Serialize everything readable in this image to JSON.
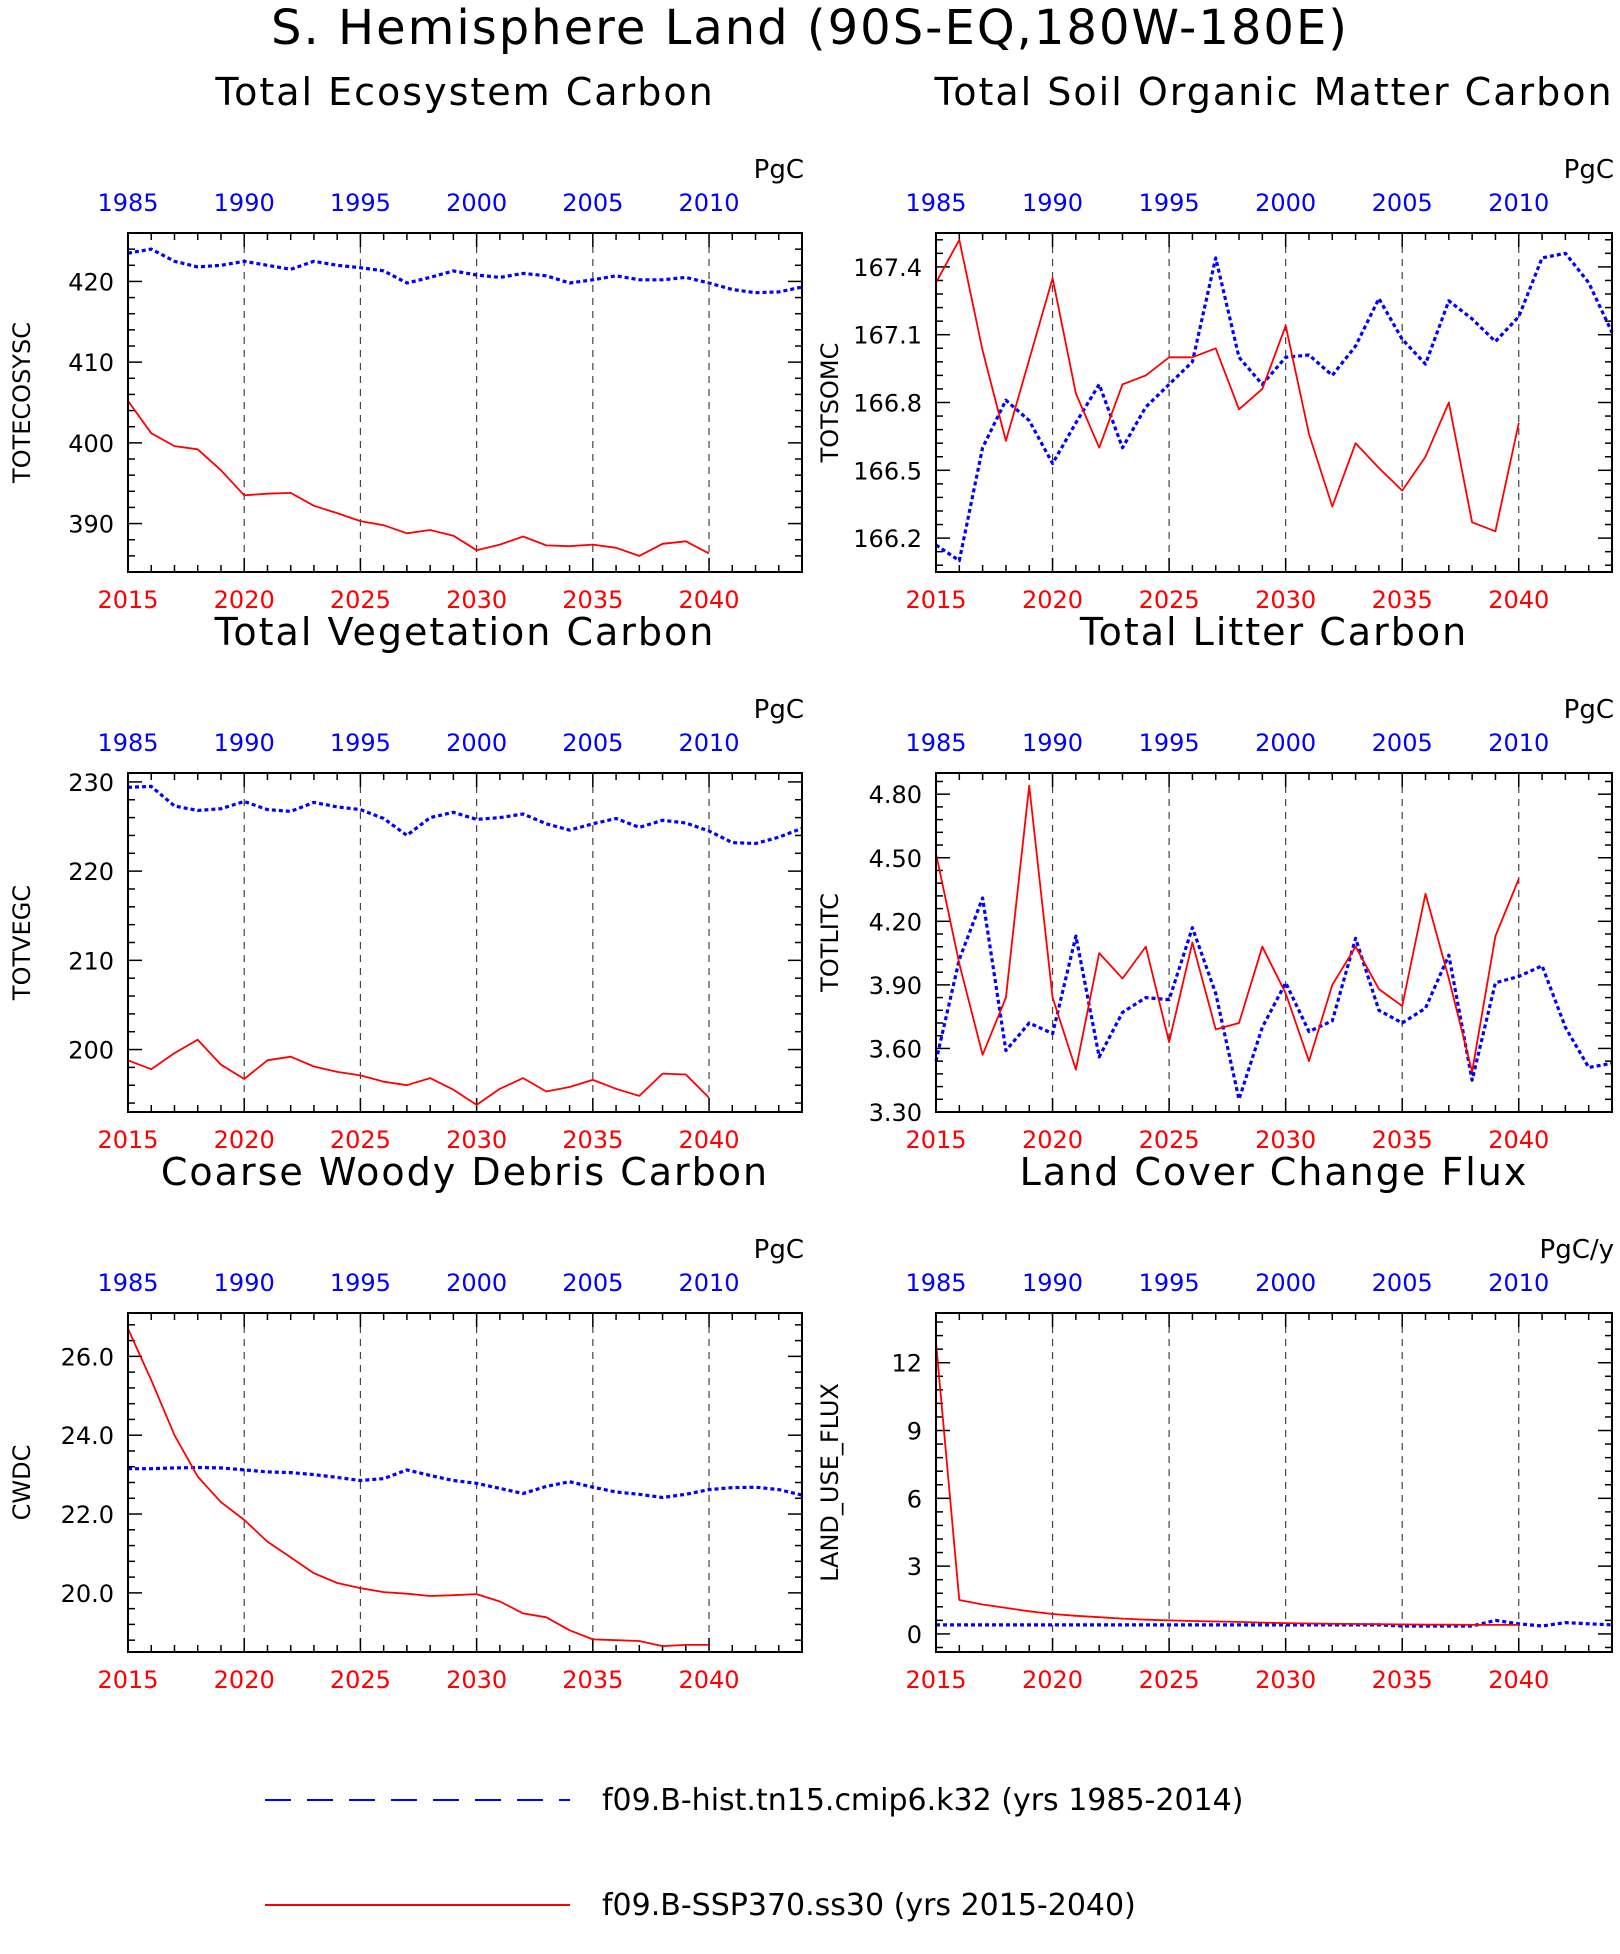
{
  "page_title": "S. Hemisphere Land (90S-EQ,180W-180E)",
  "colors": {
    "hist": "#0000ff",
    "ssp": "#ff0000",
    "axis": "#000000",
    "grid": "#444444"
  },
  "legend": [
    {
      "label": "f09.B-hist.tn15.cmip6.k32 (yrs 1985-2014)",
      "color": "#0000ff",
      "style": "dashed"
    },
    {
      "label": "f09.B-SSP370.ss30 (yrs 2015-2040)",
      "color": "#ff0000",
      "style": "solid"
    }
  ],
  "chart_data": [
    {
      "type": "line",
      "title": "Total Ecosystem Carbon",
      "ylabel": "TOTECOSYSC",
      "units": "PgC",
      "ylim": [
        384,
        426
      ],
      "yticks": [
        390,
        400,
        410,
        420
      ],
      "ytick_labels": [
        "390",
        "400",
        "410",
        "420"
      ],
      "bottom_axis": {
        "xlim": [
          2015,
          2044
        ],
        "ticks": [
          2015,
          2020,
          2025,
          2030,
          2035,
          2040
        ]
      },
      "top_axis": {
        "xlim": [
          1985,
          2014
        ],
        "ticks": [
          1985,
          1990,
          1995,
          2000,
          2005,
          2010
        ]
      },
      "series": [
        {
          "axis": "top",
          "style": "dashed",
          "x": [
            1985,
            1986,
            1987,
            1988,
            1989,
            1990,
            1991,
            1992,
            1993,
            1994,
            1995,
            1996,
            1997,
            1998,
            1999,
            2000,
            2001,
            2002,
            2003,
            2004,
            2005,
            2006,
            2007,
            2008,
            2009,
            2010,
            2011,
            2012,
            2013,
            2014
          ],
          "y": [
            423.5,
            424,
            422.5,
            421.8,
            422,
            422.5,
            422,
            421.5,
            422.5,
            422,
            421.7,
            421.3,
            419.8,
            420.5,
            421.3,
            420.8,
            420.5,
            421,
            420.7,
            419.8,
            420.2,
            420.7,
            420.2,
            420.2,
            420.5,
            419.8,
            419,
            418.6,
            418.7,
            419.3
          ]
        },
        {
          "axis": "bottom",
          "style": "solid",
          "x": [
            2015,
            2016,
            2017,
            2018,
            2019,
            2020,
            2021,
            2022,
            2023,
            2024,
            2025,
            2026,
            2027,
            2028,
            2029,
            2030,
            2031,
            2032,
            2033,
            2034,
            2035,
            2036,
            2037,
            2038,
            2039,
            2040
          ],
          "y": [
            405.2,
            401.2,
            399.6,
            399.2,
            396.6,
            393.5,
            393.7,
            393.8,
            392.2,
            391.3,
            390.3,
            389.8,
            388.8,
            389.2,
            388.5,
            386.7,
            387.4,
            388.4,
            387.3,
            387.2,
            387.4,
            387,
            386,
            387.5,
            387.8,
            386.3
          ]
        }
      ]
    },
    {
      "type": "line",
      "title": "Total Soil Organic Matter Carbon",
      "ylabel": "TOTSOMC",
      "units": "PgC",
      "ylim": [
        166.05,
        167.55
      ],
      "yticks": [
        166.2,
        166.5,
        166.8,
        167.1,
        167.4
      ],
      "ytick_labels": [
        "166.2",
        "166.5",
        "166.8",
        "167.1",
        "167.4"
      ],
      "bottom_axis": {
        "xlim": [
          2015,
          2044
        ],
        "ticks": [
          2015,
          2020,
          2025,
          2030,
          2035,
          2040
        ]
      },
      "top_axis": {
        "xlim": [
          1985,
          2014
        ],
        "ticks": [
          1985,
          1990,
          1995,
          2000,
          2005,
          2010
        ]
      },
      "series": [
        {
          "axis": "top",
          "style": "dashed",
          "x": [
            1985,
            1986,
            1987,
            1988,
            1989,
            1990,
            1991,
            1992,
            1993,
            1994,
            1995,
            1996,
            1997,
            1998,
            1999,
            2000,
            2001,
            2002,
            2003,
            2004,
            2005,
            2006,
            2007,
            2008,
            2009,
            2010,
            2011,
            2012,
            2013,
            2014
          ],
          "y": [
            166.17,
            166.1,
            166.6,
            166.81,
            166.72,
            166.53,
            166.71,
            166.88,
            166.6,
            166.78,
            166.88,
            166.98,
            167.44,
            167.0,
            166.88,
            167.0,
            167.01,
            166.92,
            167.05,
            167.26,
            167.08,
            166.97,
            167.25,
            167.17,
            167.07,
            167.18,
            167.44,
            167.46,
            167.33,
            167.11
          ]
        },
        {
          "axis": "bottom",
          "style": "solid",
          "x": [
            2015,
            2016,
            2017,
            2018,
            2019,
            2020,
            2021,
            2022,
            2023,
            2024,
            2025,
            2026,
            2027,
            2028,
            2029,
            2030,
            2031,
            2032,
            2033,
            2034,
            2035,
            2036,
            2037,
            2038,
            2039,
            2040
          ],
          "y": [
            167.33,
            167.52,
            167.03,
            166.63,
            166.99,
            167.35,
            166.84,
            166.6,
            166.88,
            166.92,
            167.0,
            167.0,
            167.04,
            166.77,
            166.86,
            167.14,
            166.66,
            166.34,
            166.62,
            166.51,
            166.41,
            166.56,
            166.8,
            166.27,
            166.23,
            166.71
          ]
        }
      ]
    },
    {
      "type": "line",
      "title": "Total Vegetation Carbon",
      "ylabel": "TOTVEGC",
      "units": "PgC",
      "ylim": [
        193,
        231
      ],
      "yticks": [
        200,
        210,
        220,
        230
      ],
      "ytick_labels": [
        "200",
        "210",
        "220",
        "230"
      ],
      "bottom_axis": {
        "xlim": [
          2015,
          2044
        ],
        "ticks": [
          2015,
          2020,
          2025,
          2030,
          2035,
          2040
        ]
      },
      "top_axis": {
        "xlim": [
          1985,
          2014
        ],
        "ticks": [
          1985,
          1990,
          1995,
          2000,
          2005,
          2010
        ]
      },
      "series": [
        {
          "axis": "top",
          "style": "dashed",
          "x": [
            1985,
            1986,
            1987,
            1988,
            1989,
            1990,
            1991,
            1992,
            1993,
            1994,
            1995,
            1996,
            1997,
            1998,
            1999,
            2000,
            2001,
            2002,
            2003,
            2004,
            2005,
            2006,
            2007,
            2008,
            2009,
            2010,
            2011,
            2012,
            2013,
            2014
          ],
          "y": [
            229.4,
            229.5,
            227.3,
            226.8,
            227,
            227.8,
            226.9,
            226.7,
            227.7,
            227.2,
            226.9,
            225.9,
            224,
            226,
            226.6,
            225.8,
            226,
            226.4,
            225.3,
            224.6,
            225.3,
            225.9,
            224.9,
            225.7,
            225.4,
            224.5,
            223.2,
            223.1,
            223.8,
            224.8
          ]
        },
        {
          "axis": "bottom",
          "style": "solid",
          "x": [
            2015,
            2016,
            2017,
            2018,
            2019,
            2020,
            2021,
            2022,
            2023,
            2024,
            2025,
            2026,
            2027,
            2028,
            2029,
            2030,
            2031,
            2032,
            2033,
            2034,
            2035,
            2036,
            2037,
            2038,
            2039,
            2040
          ],
          "y": [
            198.8,
            197.8,
            199.6,
            201.1,
            198.3,
            196.7,
            198.8,
            199.2,
            198.1,
            197.5,
            197.1,
            196.4,
            196,
            196.8,
            195.5,
            193.8,
            195.6,
            196.8,
            195.3,
            195.8,
            196.6,
            195.6,
            194.8,
            197.3,
            197.2,
            194.6
          ]
        }
      ]
    },
    {
      "type": "line",
      "title": "Total Litter Carbon",
      "ylabel": "TOTLITC",
      "units": "PgC",
      "ylim": [
        3.3,
        4.9
      ],
      "yticks": [
        3.3,
        3.6,
        3.9,
        4.2,
        4.5,
        4.8
      ],
      "ytick_labels": [
        "3.30",
        "3.60",
        "3.90",
        "4.20",
        "4.50",
        "4.80"
      ],
      "bottom_axis": {
        "xlim": [
          2015,
          2044
        ],
        "ticks": [
          2015,
          2020,
          2025,
          2030,
          2035,
          2040
        ]
      },
      "top_axis": {
        "xlim": [
          1985,
          2014
        ],
        "ticks": [
          1985,
          1990,
          1995,
          2000,
          2005,
          2010
        ]
      },
      "series": [
        {
          "axis": "top",
          "style": "dashed",
          "x": [
            1985,
            1986,
            1987,
            1988,
            1989,
            1990,
            1991,
            1992,
            1993,
            1994,
            1995,
            1996,
            1997,
            1998,
            1999,
            2000,
            2001,
            2002,
            2003,
            2004,
            2005,
            2006,
            2007,
            2008,
            2009,
            2010,
            2011,
            2012,
            2013,
            2014
          ],
          "y": [
            3.54,
            4.02,
            4.31,
            3.59,
            3.72,
            3.67,
            4.13,
            3.56,
            3.77,
            3.84,
            3.83,
            4.17,
            3.86,
            3.36,
            3.7,
            3.91,
            3.68,
            3.73,
            4.12,
            3.78,
            3.72,
            3.79,
            4.04,
            3.45,
            3.91,
            3.94,
            3.99,
            3.7,
            3.51,
            3.53
          ]
        },
        {
          "axis": "bottom",
          "style": "solid",
          "x": [
            2015,
            2016,
            2017,
            2018,
            2019,
            2020,
            2021,
            2022,
            2023,
            2024,
            2025,
            2026,
            2027,
            2028,
            2029,
            2030,
            2031,
            2032,
            2033,
            2034,
            2035,
            2036,
            2037,
            2038,
            2039,
            2040
          ],
          "y": [
            4.52,
            4.0,
            3.57,
            3.84,
            4.84,
            3.84,
            3.5,
            4.05,
            3.93,
            4.08,
            3.63,
            4.1,
            3.69,
            3.72,
            4.08,
            3.86,
            3.54,
            3.9,
            4.08,
            3.88,
            3.8,
            4.33,
            3.93,
            3.49,
            4.13,
            4.4
          ]
        }
      ]
    },
    {
      "type": "line",
      "title": "Coarse Woody Debris Carbon",
      "ylabel": "CWDC",
      "units": "PgC",
      "ylim": [
        18.5,
        27.1
      ],
      "yticks": [
        20,
        22,
        24,
        26
      ],
      "ytick_labels": [
        "20.0",
        "22.0",
        "24.0",
        "26.0"
      ],
      "bottom_axis": {
        "xlim": [
          2015,
          2044
        ],
        "ticks": [
          2015,
          2020,
          2025,
          2030,
          2035,
          2040
        ]
      },
      "top_axis": {
        "xlim": [
          1985,
          2014
        ],
        "ticks": [
          1985,
          1990,
          1995,
          2000,
          2005,
          2010
        ]
      },
      "series": [
        {
          "axis": "top",
          "style": "dashed",
          "x": [
            1985,
            1986,
            1987,
            1988,
            1989,
            1990,
            1991,
            1992,
            1993,
            1994,
            1995,
            1996,
            1997,
            1998,
            1999,
            2000,
            2001,
            2002,
            2003,
            2004,
            2005,
            2006,
            2007,
            2008,
            2009,
            2010,
            2011,
            2012,
            2013,
            2014
          ],
          "y": [
            23.15,
            23.15,
            23.17,
            23.18,
            23.17,
            23.12,
            23.07,
            23.05,
            23.0,
            22.93,
            22.85,
            22.9,
            23.12,
            22.98,
            22.85,
            22.78,
            22.65,
            22.52,
            22.7,
            22.82,
            22.68,
            22.56,
            22.5,
            22.42,
            22.5,
            22.62,
            22.67,
            22.68,
            22.62,
            22.48
          ]
        },
        {
          "axis": "bottom",
          "style": "solid",
          "x": [
            2015,
            2016,
            2017,
            2018,
            2019,
            2020,
            2021,
            2022,
            2023,
            2024,
            2025,
            2026,
            2027,
            2028,
            2029,
            2030,
            2031,
            2032,
            2033,
            2034,
            2035,
            2036,
            2037,
            2038,
            2039,
            2040
          ],
          "y": [
            26.7,
            25.4,
            24.0,
            22.95,
            22.3,
            21.85,
            21.3,
            20.9,
            20.5,
            20.25,
            20.12,
            20.02,
            19.98,
            19.92,
            19.94,
            19.97,
            19.78,
            19.48,
            19.38,
            19.05,
            18.82,
            18.8,
            18.78,
            18.65,
            18.68,
            18.68
          ]
        }
      ]
    },
    {
      "type": "line",
      "title": "Land Cover Change Flux",
      "ylabel": "LAND_USE_FLUX",
      "units": "PgC/y",
      "ylim": [
        -0.8,
        14.2
      ],
      "yticks": [
        0,
        3,
        6,
        9,
        12
      ],
      "ytick_labels": [
        "0",
        "3",
        "6",
        "9",
        "12"
      ],
      "bottom_axis": {
        "xlim": [
          2015,
          2044
        ],
        "ticks": [
          2015,
          2020,
          2025,
          2030,
          2035,
          2040
        ]
      },
      "top_axis": {
        "xlim": [
          1985,
          2014
        ],
        "ticks": [
          1985,
          1990,
          1995,
          2000,
          2005,
          2010
        ]
      },
      "series": [
        {
          "axis": "top",
          "style": "dashed",
          "x": [
            1985,
            1986,
            1987,
            1988,
            1989,
            1990,
            1991,
            1992,
            1993,
            1994,
            1995,
            1996,
            1997,
            1998,
            1999,
            2000,
            2001,
            2002,
            2003,
            2004,
            2005,
            2006,
            2007,
            2008,
            2009,
            2010,
            2011,
            2012,
            2013,
            2014
          ],
          "y": [
            0.4,
            0.4,
            0.4,
            0.4,
            0.4,
            0.4,
            0.4,
            0.4,
            0.4,
            0.4,
            0.4,
            0.4,
            0.4,
            0.4,
            0.4,
            0.4,
            0.4,
            0.4,
            0.4,
            0.4,
            0.35,
            0.35,
            0.35,
            0.35,
            0.6,
            0.45,
            0.35,
            0.5,
            0.45,
            0.4
          ]
        },
        {
          "axis": "bottom",
          "style": "solid",
          "x": [
            2015,
            2016,
            2017,
            2018,
            2019,
            2020,
            2021,
            2022,
            2023,
            2024,
            2025,
            2026,
            2027,
            2028,
            2029,
            2030,
            2031,
            2032,
            2033,
            2034,
            2035,
            2036,
            2037,
            2038,
            2039,
            2040
          ],
          "y": [
            12.9,
            1.5,
            1.3,
            1.15,
            1.0,
            0.88,
            0.8,
            0.74,
            0.68,
            0.63,
            0.6,
            0.57,
            0.55,
            0.53,
            0.5,
            0.48,
            0.46,
            0.45,
            0.44,
            0.43,
            0.42,
            0.41,
            0.41,
            0.4,
            0.4,
            0.4
          ]
        }
      ]
    }
  ]
}
